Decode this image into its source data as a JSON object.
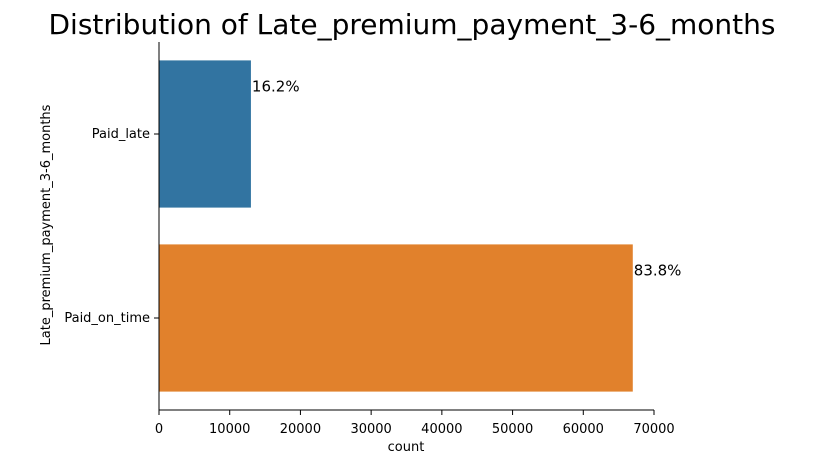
{
  "chart_data": {
    "type": "bar",
    "orientation": "horizontal",
    "title": "Distribution of Late_premium_payment_3-6_months",
    "xlabel": "count",
    "ylabel": "Late_premium_payment_3-6_months",
    "categories": [
      "Paid_late",
      "Paid_on_time"
    ],
    "values": [
      13000,
      67000
    ],
    "percent_labels": [
      "16.2%",
      "83.8%"
    ],
    "colors": [
      "#3274a1",
      "#e1812c"
    ],
    "xlim": [
      0,
      70000
    ],
    "xticks": [
      0,
      10000,
      20000,
      30000,
      40000,
      50000,
      60000,
      70000
    ],
    "grid": false,
    "legend": "none"
  }
}
